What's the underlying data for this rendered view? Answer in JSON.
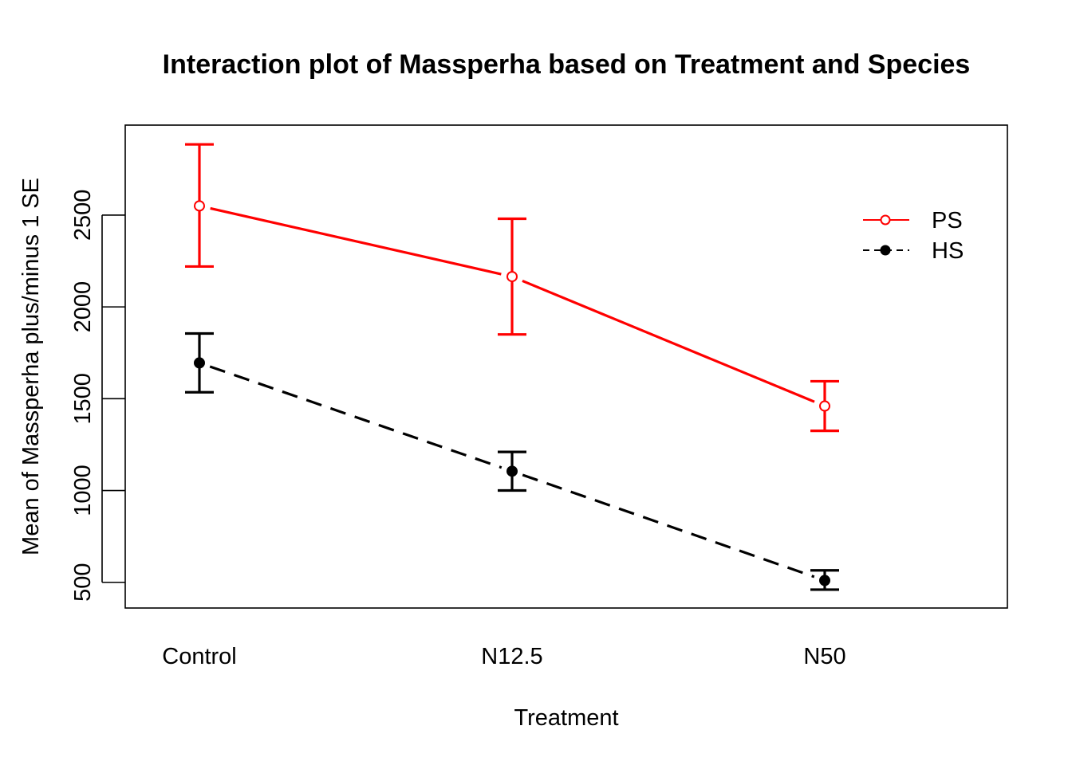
{
  "chart_data": {
    "type": "line",
    "title": "Interaction plot of Massperha based on Treatment and Species",
    "xlabel": "Treatment",
    "ylabel": "Mean of  Massperha plus/minus 1 SE",
    "categories": [
      "Control",
      "N12.5",
      "N50"
    ],
    "ylim": [
      360,
      2990
    ],
    "yticks": [
      500,
      1000,
      1500,
      2000,
      2500
    ],
    "grid": false,
    "legend_position": "top-right",
    "series": [
      {
        "name": "PS",
        "color": "#ff0000",
        "line_style": "solid",
        "marker": "open-circle",
        "values": [
          2550,
          2165,
          1460
        ],
        "se_low": [
          2220,
          1850,
          1325
        ],
        "se_high": [
          2885,
          2480,
          1595
        ]
      },
      {
        "name": "HS",
        "color": "#000000",
        "line_style": "dashed",
        "marker": "filled-circle",
        "values": [
          1695,
          1105,
          510
        ],
        "se_low": [
          1535,
          1000,
          460
        ],
        "se_high": [
          1855,
          1210,
          565
        ]
      }
    ]
  }
}
